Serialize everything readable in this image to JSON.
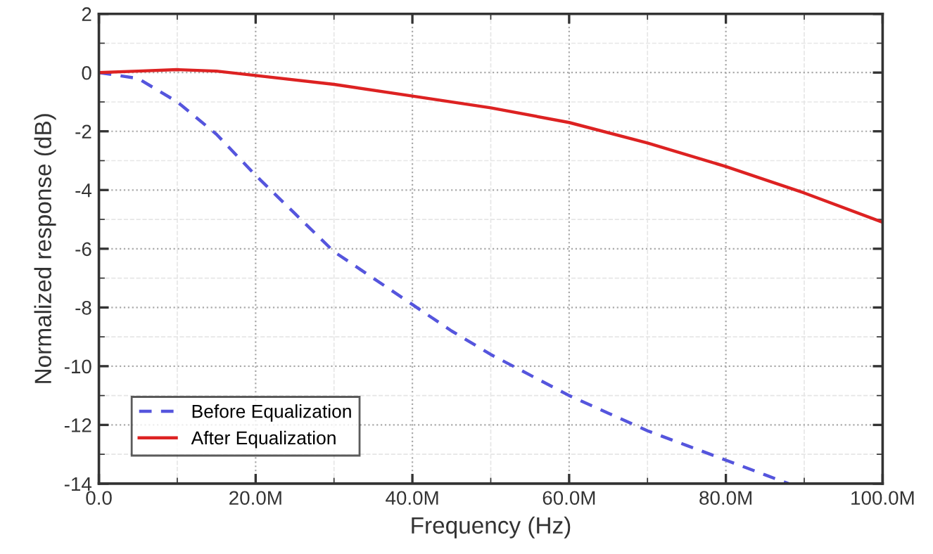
{
  "chart_data": {
    "type": "line",
    "xlabel": "Frequency (Hz)",
    "ylabel": "Normalized response (dB)",
    "xlim": [
      0,
      100000000
    ],
    "ylim": [
      -14,
      2
    ],
    "xticks": [
      {
        "value": 0,
        "label": "0.0"
      },
      {
        "value": 20000000,
        "label": "20.0M"
      },
      {
        "value": 40000000,
        "label": "40.0M"
      },
      {
        "value": 60000000,
        "label": "60.0M"
      },
      {
        "value": 80000000,
        "label": "80.0M"
      },
      {
        "value": 100000000,
        "label": "100.0M"
      }
    ],
    "yticks": [
      -14,
      -12,
      -10,
      -8,
      -6,
      -4,
      -2,
      0,
      2
    ],
    "grid": true,
    "legend": "bottom left",
    "series": [
      {
        "name": "Before Equalization",
        "color": "#5555dd",
        "line_style": "dashed",
        "x": [
          0,
          5000000,
          10000000,
          15000000,
          20000000,
          25000000,
          30000000,
          35000000,
          40000000,
          45000000,
          50000000,
          55000000,
          60000000,
          65000000,
          70000000,
          75000000,
          80000000,
          85000000,
          88000000
        ],
        "values": [
          0,
          -0.2,
          -1.0,
          -2.1,
          -3.5,
          -4.8,
          -6.1,
          -7.0,
          -7.9,
          -8.8,
          -9.6,
          -10.3,
          -11.0,
          -11.6,
          -12.2,
          -12.7,
          -13.2,
          -13.7,
          -14.0
        ]
      },
      {
        "name": "After Equalization",
        "color": "#dd2222",
        "line_style": "solid",
        "x": [
          0,
          5000000,
          10000000,
          15000000,
          20000000,
          30000000,
          40000000,
          50000000,
          60000000,
          70000000,
          80000000,
          90000000,
          100000000
        ],
        "values": [
          0,
          0.05,
          0.1,
          0.05,
          -0.1,
          -0.4,
          -0.8,
          -1.2,
          -1.7,
          -2.4,
          -3.2,
          -4.1,
          -5.1
        ]
      }
    ]
  }
}
